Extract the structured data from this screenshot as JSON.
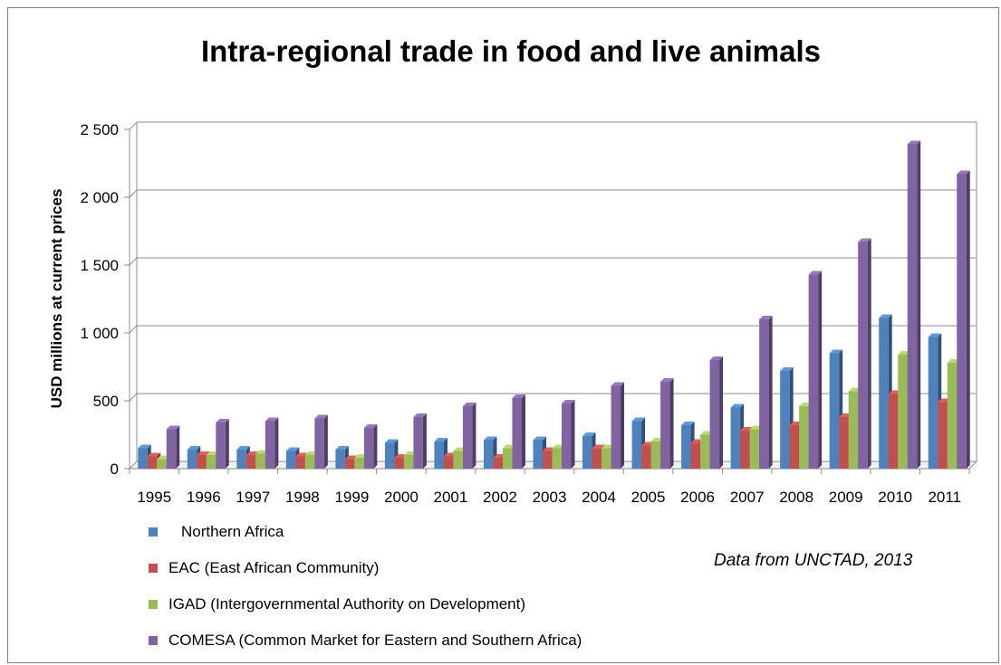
{
  "chart_data": {
    "type": "bar",
    "title": "Intra-regional trade in food and live animals",
    "xlabel": "",
    "ylabel": "USD millions at current prices",
    "ylim": [
      0,
      2500
    ],
    "yticks": [
      0,
      500,
      1000,
      1500,
      2000,
      2500
    ],
    "ytick_labels": [
      "0",
      "500",
      "1 000",
      "1 500",
      "2 000",
      "2 500"
    ],
    "grid": true,
    "legend_position": "bottom-left",
    "categories": [
      "1995",
      "1996",
      "1997",
      "1998",
      "1999",
      "2000",
      "2001",
      "2002",
      "2003",
      "2004",
      "2005",
      "2006",
      "2007",
      "2008",
      "2009",
      "2010",
      "2011"
    ],
    "series": [
      {
        "name": "Northern Africa",
        "color": "#4f81bd",
        "values": [
          150,
          140,
          140,
          130,
          140,
          190,
          200,
          210,
          210,
          240,
          350,
          320,
          450,
          720,
          850,
          1110,
          970
        ]
      },
      {
        "name": "EAC (East African Community)",
        "color": "#c0504d",
        "values": [
          90,
          100,
          100,
          90,
          70,
          80,
          90,
          80,
          130,
          150,
          170,
          190,
          280,
          320,
          380,
          550,
          490
        ]
      },
      {
        "name": "IGAD (Intergovernmental Authority on Development)",
        "color": "#9bbb59",
        "values": [
          70,
          100,
          110,
          100,
          80,
          100,
          130,
          150,
          150,
          150,
          200,
          250,
          290,
          460,
          570,
          840,
          780
        ]
      },
      {
        "name": "COMESA (Common Market for Eastern and Southern Africa)",
        "color": "#8064a2",
        "values": [
          290,
          340,
          350,
          370,
          300,
          380,
          460,
          520,
          480,
          610,
          640,
          800,
          1100,
          1430,
          1670,
          2390,
          2170
        ]
      }
    ],
    "annotation": "Data from UNCTAD, 2013"
  }
}
